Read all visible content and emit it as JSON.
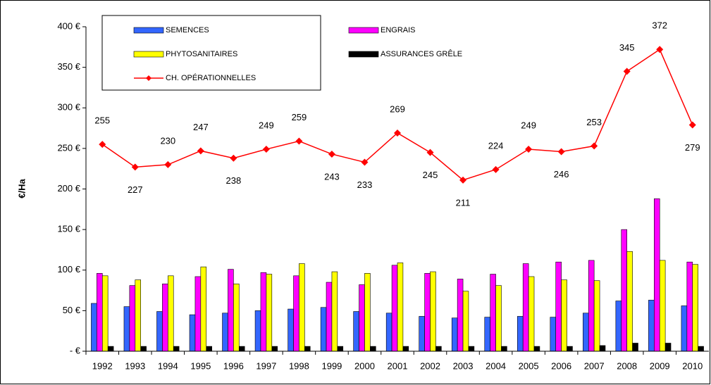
{
  "chart_data": {
    "type": "bar_line",
    "y_label": "€/Ha",
    "categories": [
      "1992",
      "1993",
      "1994",
      "1995",
      "1996",
      "1997",
      "1998",
      "1999",
      "2000",
      "2001",
      "2002",
      "2003",
      "2004",
      "2005",
      "2006",
      "2007",
      "2008",
      "2009",
      "2010"
    ],
    "series": [
      {
        "name": "SEMENCES",
        "color": "#3366ff",
        "values": [
          59,
          55,
          49,
          45,
          47,
          50,
          52,
          54,
          49,
          47,
          43,
          41,
          42,
          43,
          42,
          47,
          62,
          63,
          56
        ]
      },
      {
        "name": "ENGRAIS",
        "color": "#ff00ff",
        "values": [
          96,
          81,
          83,
          92,
          101,
          97,
          93,
          85,
          82,
          106,
          96,
          89,
          95,
          108,
          110,
          112,
          150,
          188,
          110
        ]
      },
      {
        "name": "PHYTOSANITAIRES",
        "color": "#ffff00",
        "values": [
          93,
          88,
          93,
          104,
          83,
          95,
          108,
          98,
          96,
          109,
          98,
          74,
          81,
          92,
          88,
          87,
          123,
          112,
          107
        ]
      },
      {
        "name": "ASSURANCES GRÊLE",
        "color": "#000000",
        "values": [
          6,
          6,
          6,
          6,
          6,
          6,
          6,
          6,
          6,
          6,
          6,
          6,
          6,
          6,
          6,
          7,
          10,
          10,
          6
        ]
      },
      {
        "name": "CH. OPÉRATIONNELLES",
        "color": "#ff0000",
        "type": "line",
        "values": [
          255,
          227,
          230,
          247,
          238,
          249,
          259,
          243,
          233,
          269,
          245,
          211,
          224,
          249,
          246,
          253,
          345,
          372,
          279
        ]
      }
    ],
    "ylim": [
      0,
      400
    ],
    "yticks": [
      {
        "value": 0,
        "label": "- €"
      },
      {
        "value": 50,
        "label": "50 €"
      },
      {
        "value": 100,
        "label": "100 €"
      },
      {
        "value": 150,
        "label": "150 €"
      },
      {
        "value": 200,
        "label": "200 €"
      },
      {
        "value": 250,
        "label": "250 €"
      },
      {
        "value": 300,
        "label": "300 €"
      },
      {
        "value": 350,
        "label": "350 €"
      },
      {
        "value": 400,
        "label": "400 €"
      }
    ]
  }
}
